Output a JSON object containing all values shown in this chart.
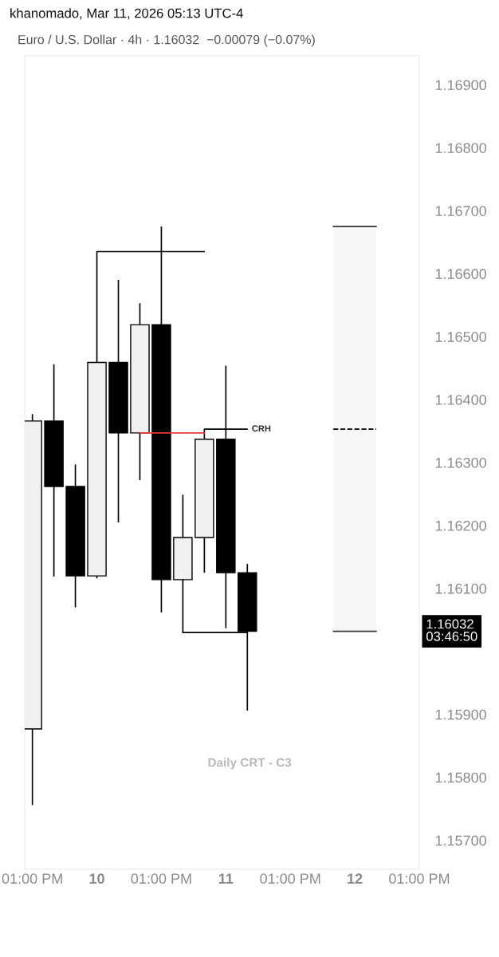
{
  "chart_data": {
    "type": "candlestick",
    "title": "khanomado, Mar 11, 2026 05:13 UTC-4",
    "subtitle": "Euro / U.S. Dollar · 4h · 1.16032  −0.00079 (−0.07%)",
    "x": [
      "2026-03-09T13:00",
      "2026-03-09T17:00",
      "2026-03-09T21:00",
      "2026-03-10T01:00",
      "2026-03-10T05:00",
      "2026-03-10T09:00",
      "2026-03-10T13:00",
      "2026-03-10T17:00",
      "2026-03-10T21:00",
      "2026-03-11T01:00",
      "2026-03-11T05:00"
    ],
    "ohlc": [
      [
        1.15877,
        1.16377,
        1.15756,
        1.16366
      ],
      [
        1.16366,
        1.16456,
        1.16119,
        1.16262
      ],
      [
        1.16262,
        1.16297,
        1.1607,
        1.1612
      ],
      [
        1.1612,
        1.16635,
        1.16116,
        1.16459
      ],
      [
        1.16459,
        1.1659,
        1.16205,
        1.16347
      ],
      [
        1.16347,
        1.16553,
        1.16272,
        1.16519
      ],
      [
        1.16519,
        1.16675,
        1.16062,
        1.16114
      ],
      [
        1.16114,
        1.16249,
        1.1603,
        1.16181
      ],
      [
        1.16181,
        1.16353,
        1.16125,
        1.16337
      ],
      [
        1.16337,
        1.16454,
        1.16037,
        1.16125
      ],
      [
        1.16125,
        1.16139,
        1.15906,
        1.16032
      ]
    ],
    "colors": [
      "#f0f0f0",
      "#000000",
      "#000000",
      "#f0f0f0",
      "#000000",
      "#f0f0f0",
      "#000000",
      "#f0f0f0",
      "#f0f0f0",
      "#000000",
      "#000000"
    ],
    "series": [
      {
        "type": "line",
        "x": [
          "2026-03-10T01:00",
          "2026-03-10T21:00"
        ],
        "values": [
          1.16635,
          1.16635
        ],
        "color": "#000000"
      },
      {
        "type": "line",
        "x": [
          "2026-03-10T21:00",
          "2026-03-11T05:00"
        ],
        "values": [
          1.16353,
          1.16353
        ],
        "color": "#000000"
      },
      {
        "type": "line",
        "x": [
          "2026-03-10T09:00",
          "2026-03-10T21:00"
        ],
        "values": [
          1.16347,
          1.16347
        ],
        "color": "#e53935"
      },
      {
        "type": "line",
        "x": [
          "2026-03-10T17:00",
          "2026-03-11T05:00"
        ],
        "values": [
          1.1603,
          1.1603
        ],
        "color": "#000000"
      },
      {
        "type": "line",
        "x": [
          "2026-03-11T21:00",
          "2026-03-12T05:00"
        ],
        "values": [
          1.16675,
          1.16675
        ],
        "color": "#333333"
      },
      {
        "type": "line",
        "x": [
          "2026-03-11T21:00",
          "2026-03-12T05:00"
        ],
        "values": [
          1.16032,
          1.16032
        ],
        "color": "#333333"
      },
      {
        "type": "line",
        "x": [
          "2026-03-11T21:00",
          "2026-03-12T05:00"
        ],
        "values": [
          1.16353,
          1.16353
        ],
        "lower": [
          1.16032,
          1.16032
        ],
        "upper": [
          1.16675,
          1.16675
        ],
        "color": "#000000",
        "line_style": "dashed"
      }
    ],
    "xlim": [
      "2026-03-09T11:34",
      "2026-03-12T13:00"
    ],
    "xticks": [
      {
        "value": "2026-03-09T13:00",
        "label": "01:00 PM"
      },
      {
        "value": "2026-03-10T01:00",
        "label": "10"
      },
      {
        "value": "2026-03-10T13:00",
        "label": "01:00 PM"
      },
      {
        "value": "2026-03-11T01:00",
        "label": "11"
      },
      {
        "value": "2026-03-11T13:00",
        "label": "01:00 PM"
      },
      {
        "value": "2026-03-12T01:00",
        "label": "12"
      },
      {
        "value": "2026-03-12T13:00",
        "label": "01:00 PM"
      }
    ],
    "ylim": [
      1.15654,
      1.16946
    ],
    "yticks": [
      {
        "value": 1.157,
        "label": "1.15700"
      },
      {
        "value": 1.158,
        "label": "1.15800"
      },
      {
        "value": 1.159,
        "label": "1.15900"
      },
      {
        "value": 1.161,
        "label": "1.16100"
      },
      {
        "value": 1.162,
        "label": "1.16200"
      },
      {
        "value": 1.163,
        "label": "1.16300"
      },
      {
        "value": 1.164,
        "label": "1.16400"
      },
      {
        "value": 1.165,
        "label": "1.16500"
      },
      {
        "value": 1.166,
        "label": "1.16600"
      },
      {
        "value": 1.167,
        "label": "1.16700"
      },
      {
        "value": 1.168,
        "label": "1.16800"
      },
      {
        "value": 1.169,
        "label": "1.16900"
      }
    ],
    "grid": false,
    "annotations": [
      {
        "text": "CRH",
        "x": "2026-03-11T05:00",
        "y": 1.16353
      },
      "1.16032\n03:46:50",
      "Daily CRT - C3"
    ]
  }
}
